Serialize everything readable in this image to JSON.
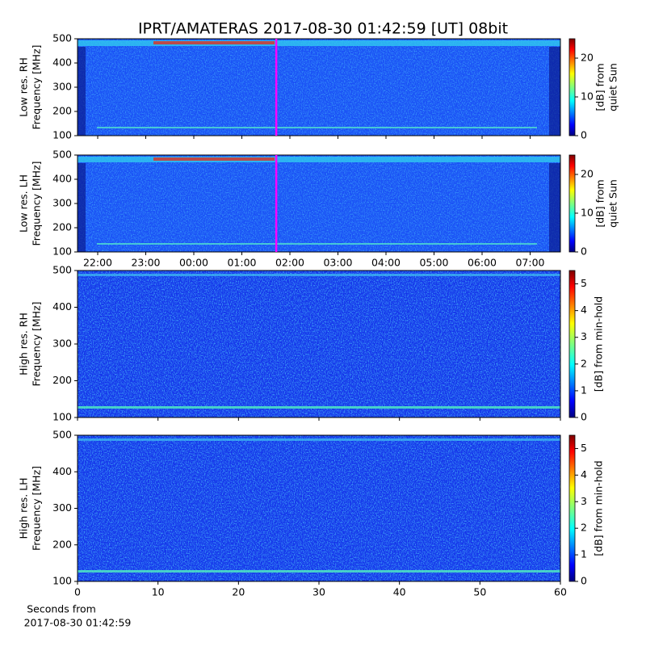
{
  "figure": {
    "title": "IPRT/AMATERAS 2017-08-30 01:42:59 [UT]   08bit",
    "xlabel": [
      "Seconds from",
      "2017-08-30 01:42:59"
    ]
  },
  "chart_data": [
    {
      "type": "spectrogram",
      "ylabel": [
        "Low res. RH",
        "Frequency [MHz]"
      ],
      "ylim": [
        100,
        500
      ],
      "yticks": [
        100,
        200,
        300,
        400,
        500
      ],
      "xlim": [
        21.58,
        31.63
      ],
      "xticks": [
        22,
        23,
        24,
        25,
        26,
        27,
        28,
        29,
        30,
        31
      ],
      "show_xticklabels": false,
      "marker_x": 25.7164,
      "marker_color": "#ff00ff",
      "colorbar_label": [
        "[dB] from",
        "quiet Sun"
      ],
      "clim": [
        0,
        25
      ],
      "cticks": [
        0,
        10,
        20
      ],
      "colormap": "jet"
    },
    {
      "type": "spectrogram",
      "ylabel": [
        "Low res. LH",
        "Frequency [MHz]"
      ],
      "ylim": [
        100,
        500
      ],
      "yticks": [
        100,
        200,
        300,
        400,
        500
      ],
      "xlim": [
        21.58,
        31.63
      ],
      "xticks": [
        {
          "value": 22,
          "label": "22:00"
        },
        {
          "value": 23,
          "label": "23:00"
        },
        {
          "value": 24,
          "label": "00:00"
        },
        {
          "value": 25,
          "label": "01:00"
        },
        {
          "value": 26,
          "label": "02:00"
        },
        {
          "value": 27,
          "label": "03:00"
        },
        {
          "value": 28,
          "label": "04:00"
        },
        {
          "value": 29,
          "label": "05:00"
        },
        {
          "value": 30,
          "label": "06:00"
        },
        {
          "value": 31,
          "label": "07:00"
        }
      ],
      "show_xticklabels": true,
      "marker_x": 25.7164,
      "marker_color": "#ff00ff",
      "colorbar_label": [
        "[dB] from",
        "quiet Sun"
      ],
      "clim": [
        0,
        25
      ],
      "cticks": [
        0,
        10,
        20
      ],
      "colormap": "jet"
    },
    {
      "type": "spectrogram",
      "ylabel": [
        "High res. RH",
        "Frequency [MHz]"
      ],
      "ylim": [
        100,
        500
      ],
      "yticks": [
        100,
        200,
        300,
        400,
        500
      ],
      "xlim": [
        0,
        60
      ],
      "xticks": [
        0,
        10,
        20,
        30,
        40,
        50,
        60
      ],
      "show_xticklabels": false,
      "colorbar_label": [
        "[dB] from min-hold"
      ],
      "clim": [
        0,
        5.5
      ],
      "cticks": [
        0,
        1,
        2,
        3,
        4,
        5
      ],
      "colormap": "jet"
    },
    {
      "type": "spectrogram",
      "ylabel": [
        "High res. LH",
        "Frequency [MHz]"
      ],
      "ylim": [
        100,
        500
      ],
      "yticks": [
        100,
        200,
        300,
        400,
        500
      ],
      "xlim": [
        0,
        60
      ],
      "xticks": [
        0,
        10,
        20,
        30,
        40,
        50,
        60
      ],
      "show_xticklabels": true,
      "colorbar_label": [
        "[dB] from min-hold"
      ],
      "clim": [
        0,
        5.5
      ],
      "cticks": [
        0,
        1,
        2,
        3,
        4,
        5
      ],
      "colormap": "jet"
    }
  ]
}
